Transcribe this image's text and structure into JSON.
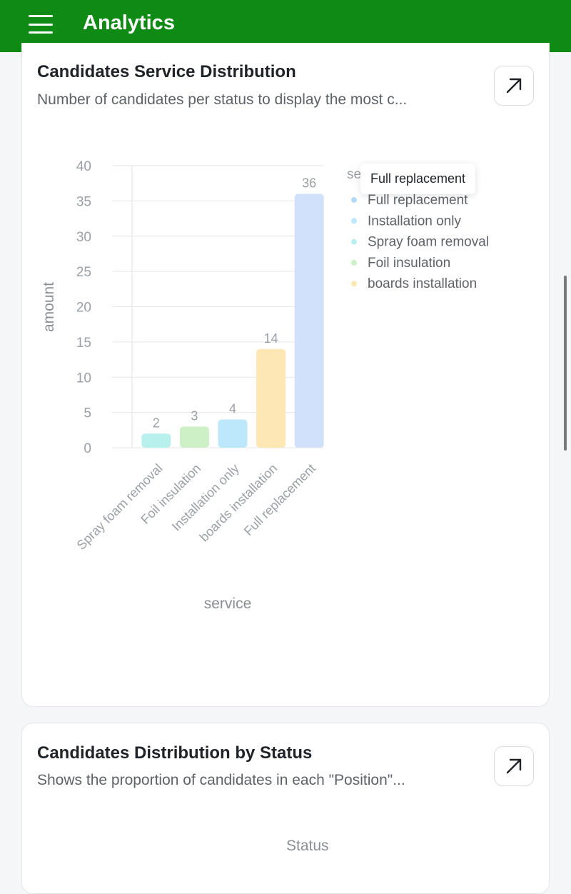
{
  "header": {
    "title": "Analytics",
    "menu_icon": "hamburger-menu-icon",
    "bg_color": "#0f8a14"
  },
  "card1": {
    "title": "Candidates Service Distribution",
    "subtitle": "Number of candidates per status to display the most c...",
    "expand_icon": "arrow-up-right-icon",
    "tooltip": "Full replacement"
  },
  "card2": {
    "title": "Candidates Distribution by Status",
    "subtitle": "Shows the proportion of candidates in each \"Position\"...",
    "expand_icon": "arrow-up-right-icon",
    "legend_title": "Status"
  },
  "chart_data": {
    "type": "bar",
    "categories": [
      "Spray foam removal",
      "Foil insulation",
      "Installation only",
      "boards installation",
      "Full replacement"
    ],
    "values": [
      2,
      3,
      4,
      14,
      36
    ],
    "colors": [
      "#b8f0ee",
      "#cdf0c7",
      "#bde7fb",
      "#fde7b4",
      "#d1e1fb"
    ],
    "xlabel": "service",
    "ylabel": "amount",
    "ylim": [
      0,
      40
    ],
    "yticks": [
      0,
      5,
      10,
      15,
      20,
      25,
      30,
      35,
      40
    ],
    "grid": true,
    "legend": {
      "title": "se",
      "placement": "right",
      "entries": [
        "Full replacement",
        "Installation only",
        "Spray foam removal",
        "Foil insulation",
        "boards installation"
      ],
      "colors": [
        "#b9d8f8",
        "#bde7fb",
        "#b8f0ee",
        "#cdf0c7",
        "#fde7b4"
      ]
    }
  }
}
